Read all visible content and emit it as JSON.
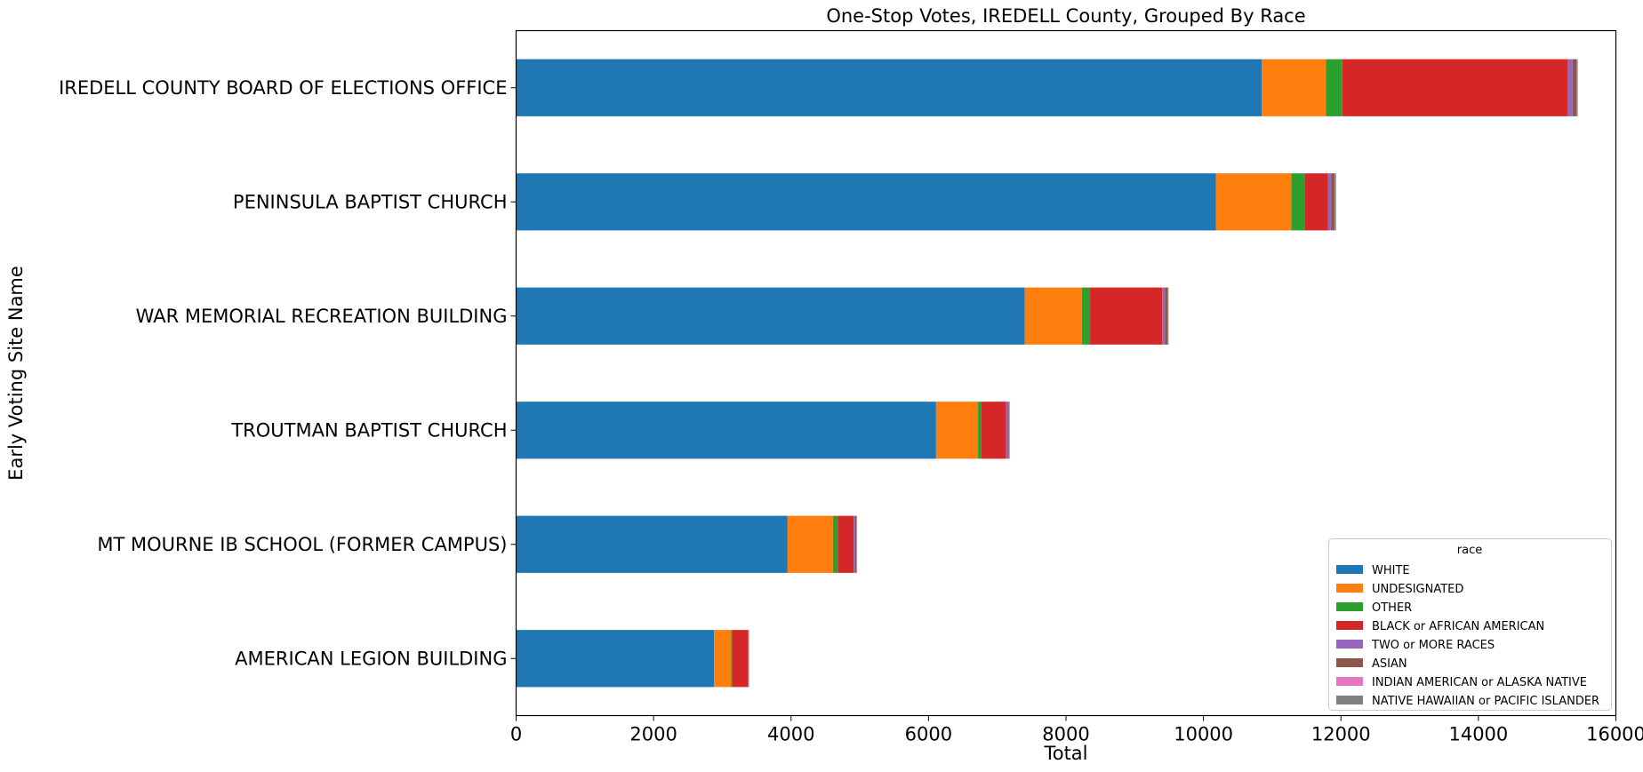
{
  "chart_data": {
    "type": "bar",
    "orientation": "horizontal",
    "stacked": true,
    "title": "One-Stop Votes, IREDELL County, Grouped By Race",
    "xlabel": "Total",
    "ylabel": "Early Voting Site Name",
    "xlim": [
      0,
      16000
    ],
    "xticks": [
      0,
      2000,
      4000,
      6000,
      8000,
      10000,
      12000,
      14000,
      16000
    ],
    "grid": false,
    "legend_title": "race",
    "legend_position": "lower right",
    "categories": [
      "IREDELL COUNTY BOARD OF ELECTIONS OFFICE",
      "PENINSULA BAPTIST CHURCH",
      "WAR MEMORIAL RECREATION BUILDING",
      "TROUTMAN BAPTIST CHURCH",
      "MT MOURNE IB SCHOOL (FORMER CAMPUS)",
      "AMERICAN LEGION BUILDING"
    ],
    "series": [
      {
        "name": "WHITE",
        "color": "#1f77b4",
        "values": [
          10850,
          10180,
          7400,
          6110,
          3950,
          2880
        ]
      },
      {
        "name": "UNDESIGNATED",
        "color": "#ff7f0e",
        "values": [
          930,
          1100,
          830,
          610,
          660,
          250
        ]
      },
      {
        "name": "OTHER",
        "color": "#2ca02c",
        "values": [
          240,
          190,
          120,
          50,
          70,
          10
        ]
      },
      {
        "name": "BLACK or AFRICAN AMERICAN",
        "color": "#d62728",
        "values": [
          3280,
          340,
          1050,
          360,
          230,
          230
        ]
      },
      {
        "name": "TWO or MORE RACES",
        "color": "#9467bd",
        "values": [
          70,
          50,
          40,
          20,
          20,
          5
        ]
      },
      {
        "name": "ASIAN",
        "color": "#8c564b",
        "values": [
          60,
          50,
          40,
          20,
          20,
          5
        ]
      },
      {
        "name": "INDIAN AMERICAN or ALASKA NATIVE",
        "color": "#e377c2",
        "values": [
          10,
          10,
          5,
          5,
          5,
          2
        ]
      },
      {
        "name": "NATIVE HAWAIIAN or PACIFIC ISLANDER",
        "color": "#7f7f7f",
        "values": [
          5,
          10,
          5,
          5,
          5,
          2
        ]
      }
    ]
  }
}
